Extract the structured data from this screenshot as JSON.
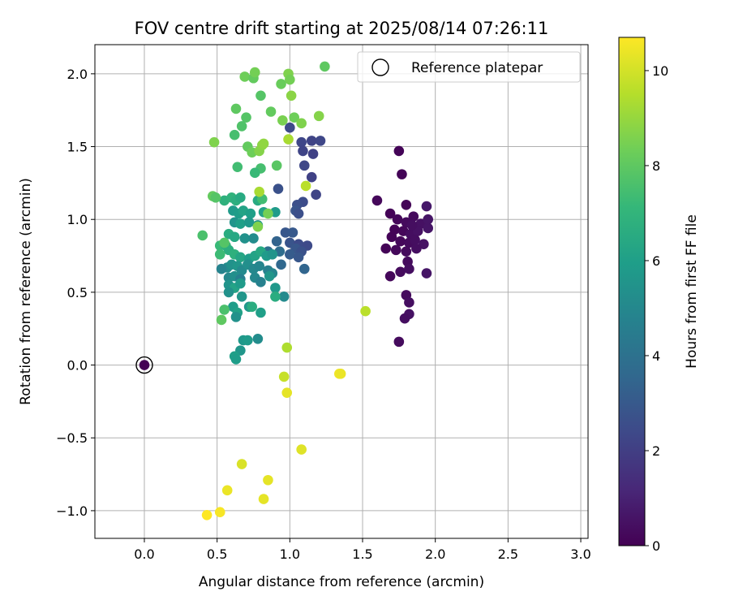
{
  "chart_data": {
    "type": "scatter",
    "title": "FOV centre drift starting at 2025/08/14 07:26:11",
    "xlabel": "Angular distance from reference (arcmin)",
    "ylabel": "Rotation from reference (arcmin)",
    "xlim": [
      -0.34,
      3.05
    ],
    "ylim": [
      -1.19,
      2.2
    ],
    "xticks": [
      0.0,
      0.5,
      1.0,
      1.5,
      2.0,
      2.5,
      3.0
    ],
    "xtick_labels": [
      "0.0",
      "0.5",
      "1.0",
      "1.5",
      "2.0",
      "2.5",
      "3.0"
    ],
    "yticks": [
      -1.0,
      -0.5,
      0.0,
      0.5,
      1.0,
      1.5,
      2.0
    ],
    "ytick_labels": [
      "−1.0",
      "−0.5",
      "0.0",
      "0.5",
      "1.0",
      "1.5",
      "2.0"
    ],
    "grid": true,
    "legend": {
      "placement": "top-right",
      "entries": [
        "Reference platepar"
      ]
    },
    "reference_point": {
      "x": 0.0,
      "y": 0.0,
      "label": "Reference platepar"
    },
    "colorbar": {
      "label": "Hours from first FF file",
      "range": [
        0,
        10.7
      ],
      "ticks": [
        0,
        2,
        4,
        6,
        8,
        10
      ],
      "tick_labels": [
        "0",
        "2",
        "4",
        "6",
        "8",
        "10"
      ],
      "colormap": "viridis",
      "stops": [
        "#440154",
        "#482878",
        "#3e4989",
        "#31688e",
        "#26828e",
        "#1f9e89",
        "#35b779",
        "#6ece58",
        "#b5de2b",
        "#fde725"
      ]
    },
    "points": [
      {
        "x": 1.75,
        "y": 1.47,
        "t": 0.1
      },
      {
        "x": 1.77,
        "y": 1.31,
        "t": 0.1
      },
      {
        "x": 1.6,
        "y": 1.13,
        "t": 0.2
      },
      {
        "x": 1.8,
        "y": 1.1,
        "t": 0.1
      },
      {
        "x": 1.69,
        "y": 1.04,
        "t": 0.1
      },
      {
        "x": 1.74,
        "y": 1.0,
        "t": 0.2
      },
      {
        "x": 1.8,
        "y": 0.98,
        "t": 0.3
      },
      {
        "x": 1.85,
        "y": 1.02,
        "t": 0.3
      },
      {
        "x": 1.9,
        "y": 0.97,
        "t": 0.5
      },
      {
        "x": 1.72,
        "y": 0.93,
        "t": 0.1
      },
      {
        "x": 1.78,
        "y": 0.92,
        "t": 0.2
      },
      {
        "x": 1.83,
        "y": 0.9,
        "t": 0.4
      },
      {
        "x": 1.88,
        "y": 0.92,
        "t": 0.5
      },
      {
        "x": 1.95,
        "y": 0.94,
        "t": 0.6
      },
      {
        "x": 1.94,
        "y": 1.09,
        "t": 0.7
      },
      {
        "x": 1.7,
        "y": 0.88,
        "t": 0.1
      },
      {
        "x": 1.76,
        "y": 0.85,
        "t": 0.2
      },
      {
        "x": 1.82,
        "y": 0.84,
        "t": 0.3
      },
      {
        "x": 1.86,
        "y": 0.86,
        "t": 0.4
      },
      {
        "x": 1.92,
        "y": 0.83,
        "t": 0.5
      },
      {
        "x": 1.66,
        "y": 0.8,
        "t": 0.1
      },
      {
        "x": 1.73,
        "y": 0.79,
        "t": 0.2
      },
      {
        "x": 1.8,
        "y": 0.78,
        "t": 0.3
      },
      {
        "x": 1.87,
        "y": 0.8,
        "t": 0.4
      },
      {
        "x": 1.81,
        "y": 0.71,
        "t": 0.3
      },
      {
        "x": 1.69,
        "y": 0.61,
        "t": 0.2
      },
      {
        "x": 1.76,
        "y": 0.64,
        "t": 0.3
      },
      {
        "x": 1.82,
        "y": 0.66,
        "t": 0.4
      },
      {
        "x": 1.94,
        "y": 0.63,
        "t": 0.6
      },
      {
        "x": 1.8,
        "y": 0.48,
        "t": 0.3
      },
      {
        "x": 1.82,
        "y": 0.43,
        "t": 0.4
      },
      {
        "x": 1.82,
        "y": 0.35,
        "t": 0.5
      },
      {
        "x": 1.79,
        "y": 0.32,
        "t": 0.4
      },
      {
        "x": 1.75,
        "y": 0.16,
        "t": 0.3
      },
      {
        "x": 1.95,
        "y": 1.0,
        "t": 0.6
      },
      {
        "x": 1.84,
        "y": 0.96,
        "t": 0.4
      },
      {
        "x": 1.0,
        "y": 1.63,
        "t": 2.4
      },
      {
        "x": 1.08,
        "y": 1.53,
        "t": 2.3
      },
      {
        "x": 1.15,
        "y": 1.54,
        "t": 2.2
      },
      {
        "x": 1.21,
        "y": 1.54,
        "t": 2.3
      },
      {
        "x": 1.09,
        "y": 1.47,
        "t": 2.2
      },
      {
        "x": 1.16,
        "y": 1.45,
        "t": 2.1
      },
      {
        "x": 1.1,
        "y": 1.37,
        "t": 2.3
      },
      {
        "x": 1.15,
        "y": 1.29,
        "t": 2.1
      },
      {
        "x": 1.18,
        "y": 1.17,
        "t": 2.2
      },
      {
        "x": 1.09,
        "y": 1.12,
        "t": 2.5
      },
      {
        "x": 1.05,
        "y": 1.1,
        "t": 2.6
      },
      {
        "x": 0.92,
        "y": 1.21,
        "t": 2.7
      },
      {
        "x": 1.04,
        "y": 1.06,
        "t": 2.8
      },
      {
        "x": 1.06,
        "y": 1.04,
        "t": 2.6
      },
      {
        "x": 0.97,
        "y": 0.91,
        "t": 2.9
      },
      {
        "x": 1.02,
        "y": 0.91,
        "t": 3.0
      },
      {
        "x": 1.0,
        "y": 0.84,
        "t": 2.8
      },
      {
        "x": 1.06,
        "y": 0.83,
        "t": 2.5
      },
      {
        "x": 1.12,
        "y": 0.82,
        "t": 2.4
      },
      {
        "x": 1.04,
        "y": 0.8,
        "t": 2.9
      },
      {
        "x": 1.08,
        "y": 0.78,
        "t": 2.7
      },
      {
        "x": 1.0,
        "y": 0.76,
        "t": 3.1
      },
      {
        "x": 1.06,
        "y": 0.74,
        "t": 2.9
      },
      {
        "x": 1.1,
        "y": 0.66,
        "t": 3.5
      },
      {
        "x": 0.91,
        "y": 0.85,
        "t": 3.4
      },
      {
        "x": 0.94,
        "y": 0.69,
        "t": 3.6
      },
      {
        "x": 0.93,
        "y": 0.78,
        "t": 3.8
      },
      {
        "x": 0.85,
        "y": 0.78,
        "t": 3.9
      },
      {
        "x": 0.55,
        "y": 1.13,
        "t": 6.8
      },
      {
        "x": 0.6,
        "y": 1.15,
        "t": 6.9
      },
      {
        "x": 0.63,
        "y": 1.13,
        "t": 6.7
      },
      {
        "x": 0.66,
        "y": 1.15,
        "t": 6.5
      },
      {
        "x": 0.61,
        "y": 1.06,
        "t": 5.8
      },
      {
        "x": 0.65,
        "y": 1.04,
        "t": 5.9
      },
      {
        "x": 0.68,
        "y": 1.06,
        "t": 6.2
      },
      {
        "x": 0.73,
        "y": 1.04,
        "t": 6.0
      },
      {
        "x": 0.78,
        "y": 1.13,
        "t": 6.5
      },
      {
        "x": 0.82,
        "y": 1.05,
        "t": 6.1
      },
      {
        "x": 0.9,
        "y": 1.05,
        "t": 5.8
      },
      {
        "x": 0.62,
        "y": 0.98,
        "t": 5.5
      },
      {
        "x": 0.66,
        "y": 0.97,
        "t": 6.0
      },
      {
        "x": 0.72,
        "y": 0.98,
        "t": 5.7
      },
      {
        "x": 0.78,
        "y": 0.96,
        "t": 5.6
      },
      {
        "x": 0.58,
        "y": 0.9,
        "t": 6.6
      },
      {
        "x": 0.62,
        "y": 0.88,
        "t": 6.4
      },
      {
        "x": 0.69,
        "y": 0.87,
        "t": 5.4
      },
      {
        "x": 0.75,
        "y": 0.87,
        "t": 5.2
      },
      {
        "x": 0.52,
        "y": 0.82,
        "t": 7.2
      },
      {
        "x": 0.56,
        "y": 0.82,
        "t": 6.9
      },
      {
        "x": 0.58,
        "y": 0.79,
        "t": 6.7
      },
      {
        "x": 0.52,
        "y": 0.76,
        "t": 7.3
      },
      {
        "x": 0.62,
        "y": 0.76,
        "t": 6.8
      },
      {
        "x": 0.66,
        "y": 0.74,
        "t": 6.3
      },
      {
        "x": 0.72,
        "y": 0.73,
        "t": 5.9
      },
      {
        "x": 0.76,
        "y": 0.75,
        "t": 6.2
      },
      {
        "x": 0.8,
        "y": 0.78,
        "t": 6.4
      },
      {
        "x": 0.84,
        "y": 0.75,
        "t": 5.8
      },
      {
        "x": 0.88,
        "y": 0.76,
        "t": 5.5
      },
      {
        "x": 0.57,
        "y": 0.67,
        "t": 5.2
      },
      {
        "x": 0.6,
        "y": 0.69,
        "t": 5.4
      },
      {
        "x": 0.64,
        "y": 0.68,
        "t": 5.6
      },
      {
        "x": 0.67,
        "y": 0.65,
        "t": 5.1
      },
      {
        "x": 0.71,
        "y": 0.69,
        "t": 5.3
      },
      {
        "x": 0.75,
        "y": 0.66,
        "t": 5.0
      },
      {
        "x": 0.79,
        "y": 0.68,
        "t": 4.9
      },
      {
        "x": 0.85,
        "y": 0.65,
        "t": 4.7
      },
      {
        "x": 0.88,
        "y": 0.63,
        "t": 4.9
      },
      {
        "x": 0.53,
        "y": 0.66,
        "t": 4.8
      },
      {
        "x": 0.58,
        "y": 0.6,
        "t": 5.0
      },
      {
        "x": 0.62,
        "y": 0.61,
        "t": 5.3
      },
      {
        "x": 0.66,
        "y": 0.59,
        "t": 4.6
      },
      {
        "x": 0.76,
        "y": 0.6,
        "t": 5.0
      },
      {
        "x": 0.8,
        "y": 0.57,
        "t": 4.7
      },
      {
        "x": 0.86,
        "y": 0.61,
        "t": 5.6
      },
      {
        "x": 0.58,
        "y": 0.55,
        "t": 5.5
      },
      {
        "x": 0.62,
        "y": 0.53,
        "t": 6.2
      },
      {
        "x": 0.66,
        "y": 0.56,
        "t": 5.8
      },
      {
        "x": 0.9,
        "y": 0.53,
        "t": 5.7
      },
      {
        "x": 0.96,
        "y": 0.47,
        "t": 5.1
      },
      {
        "x": 0.58,
        "y": 0.5,
        "t": 5.4
      },
      {
        "x": 0.67,
        "y": 0.47,
        "t": 5.6
      },
      {
        "x": 0.9,
        "y": 0.47,
        "t": 6.6
      },
      {
        "x": 0.61,
        "y": 0.4,
        "t": 5.9
      },
      {
        "x": 0.72,
        "y": 0.4,
        "t": 5.7
      },
      {
        "x": 0.74,
        "y": 0.4,
        "t": 6.6
      },
      {
        "x": 0.64,
        "y": 0.36,
        "t": 6.1
      },
      {
        "x": 0.8,
        "y": 0.36,
        "t": 6.0
      },
      {
        "x": 0.63,
        "y": 0.33,
        "t": 5.4
      },
      {
        "x": 0.68,
        "y": 0.17,
        "t": 5.7
      },
      {
        "x": 0.71,
        "y": 0.17,
        "t": 5.8
      },
      {
        "x": 0.78,
        "y": 0.18,
        "t": 5.2
      },
      {
        "x": 0.66,
        "y": 0.1,
        "t": 5.6
      },
      {
        "x": 0.62,
        "y": 0.06,
        "t": 6.0
      },
      {
        "x": 0.63,
        "y": 0.04,
        "t": 5.9
      },
      {
        "x": 0.69,
        "y": 1.98,
        "t": 8.3
      },
      {
        "x": 0.75,
        "y": 1.97,
        "t": 8.1
      },
      {
        "x": 0.76,
        "y": 2.01,
        "t": 8.4
      },
      {
        "x": 0.99,
        "y": 2.0,
        "t": 8.6
      },
      {
        "x": 1.24,
        "y": 2.05,
        "t": 8.0
      },
      {
        "x": 0.94,
        "y": 1.93,
        "t": 8.2
      },
      {
        "x": 1.0,
        "y": 1.96,
        "t": 8.4
      },
      {
        "x": 0.8,
        "y": 1.85,
        "t": 7.8
      },
      {
        "x": 1.01,
        "y": 1.85,
        "t": 8.8
      },
      {
        "x": 0.63,
        "y": 1.76,
        "t": 8.0
      },
      {
        "x": 0.87,
        "y": 1.74,
        "t": 8.1
      },
      {
        "x": 0.7,
        "y": 1.7,
        "t": 7.8
      },
      {
        "x": 0.95,
        "y": 1.68,
        "t": 8.5
      },
      {
        "x": 1.03,
        "y": 1.7,
        "t": 8.3
      },
      {
        "x": 1.08,
        "y": 1.66,
        "t": 8.6
      },
      {
        "x": 1.2,
        "y": 1.71,
        "t": 8.7
      },
      {
        "x": 0.67,
        "y": 1.64,
        "t": 7.7
      },
      {
        "x": 0.62,
        "y": 1.58,
        "t": 7.5
      },
      {
        "x": 0.99,
        "y": 1.55,
        "t": 9.3
      },
      {
        "x": 0.48,
        "y": 1.53,
        "t": 8.6
      },
      {
        "x": 0.71,
        "y": 1.5,
        "t": 8.1
      },
      {
        "x": 0.74,
        "y": 1.46,
        "t": 8.3
      },
      {
        "x": 0.79,
        "y": 1.47,
        "t": 8.7
      },
      {
        "x": 0.81,
        "y": 1.51,
        "t": 8.8
      },
      {
        "x": 0.82,
        "y": 1.52,
        "t": 8.9
      },
      {
        "x": 0.91,
        "y": 1.37,
        "t": 7.9
      },
      {
        "x": 0.8,
        "y": 1.35,
        "t": 7.5
      },
      {
        "x": 0.76,
        "y": 1.32,
        "t": 7.2
      },
      {
        "x": 0.64,
        "y": 1.36,
        "t": 7.4
      },
      {
        "x": 0.47,
        "y": 1.16,
        "t": 8.1
      },
      {
        "x": 0.49,
        "y": 1.15,
        "t": 7.8
      },
      {
        "x": 0.81,
        "y": 1.14,
        "t": 7.4
      },
      {
        "x": 1.11,
        "y": 1.23,
        "t": 9.6
      },
      {
        "x": 0.79,
        "y": 1.19,
        "t": 9.3
      },
      {
        "x": 0.4,
        "y": 0.89,
        "t": 7.6
      },
      {
        "x": 0.55,
        "y": 0.84,
        "t": 7.8
      },
      {
        "x": 0.78,
        "y": 0.95,
        "t": 8.6
      },
      {
        "x": 0.85,
        "y": 1.04,
        "t": 8.4
      },
      {
        "x": 0.55,
        "y": 0.38,
        "t": 7.6
      },
      {
        "x": 0.53,
        "y": 0.31,
        "t": 8.0
      },
      {
        "x": 1.52,
        "y": 0.37,
        "t": 9.6
      },
      {
        "x": 0.98,
        "y": 0.12,
        "t": 9.4
      },
      {
        "x": 0.96,
        "y": -0.08,
        "t": 9.8
      },
      {
        "x": 0.98,
        "y": -0.19,
        "t": 10.3
      },
      {
        "x": 1.34,
        "y": -0.06,
        "t": 10.5
      },
      {
        "x": 1.35,
        "y": -0.06,
        "t": 10.4
      },
      {
        "x": 1.08,
        "y": -0.58,
        "t": 10.2
      },
      {
        "x": 0.67,
        "y": -0.68,
        "t": 10.1
      },
      {
        "x": 0.85,
        "y": -0.79,
        "t": 10.3
      },
      {
        "x": 0.57,
        "y": -0.86,
        "t": 10.4
      },
      {
        "x": 0.82,
        "y": -0.92,
        "t": 10.3
      },
      {
        "x": 0.52,
        "y": -1.01,
        "t": 10.6
      },
      {
        "x": 0.43,
        "y": -1.03,
        "t": 10.7
      }
    ]
  }
}
